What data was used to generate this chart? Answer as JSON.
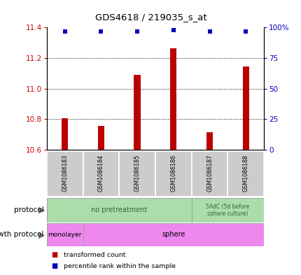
{
  "title": "GDS4618 / 219035_s_at",
  "samples": [
    "GSM1086183",
    "GSM1086184",
    "GSM1086185",
    "GSM1086186",
    "GSM1086187",
    "GSM1086188"
  ],
  "bar_values": [
    10.805,
    10.755,
    11.09,
    11.265,
    10.715,
    11.145
  ],
  "percentile_values": [
    97,
    97,
    97,
    98,
    97,
    97
  ],
  "bar_color": "#bb0000",
  "dot_color": "#0000bb",
  "ylim_left": [
    10.6,
    11.4
  ],
  "ylim_right": [
    0,
    100
  ],
  "yticks_left": [
    10.6,
    10.8,
    11.0,
    11.2,
    11.4
  ],
  "yticks_right": [
    0,
    25,
    50,
    75,
    100
  ],
  "ytick_right_labels": [
    "0",
    "25",
    "50",
    "75",
    "100%"
  ],
  "grid_yticks": [
    10.8,
    11.0,
    11.2
  ],
  "left_label_color": "#cc0000",
  "right_label_color": "#0000cc",
  "bar_width": 0.18,
  "sample_box_color": "#cccccc",
  "protocol_green": "#aaddaa",
  "growth_pink": "#ee88ee",
  "arrow_color": "#888888"
}
